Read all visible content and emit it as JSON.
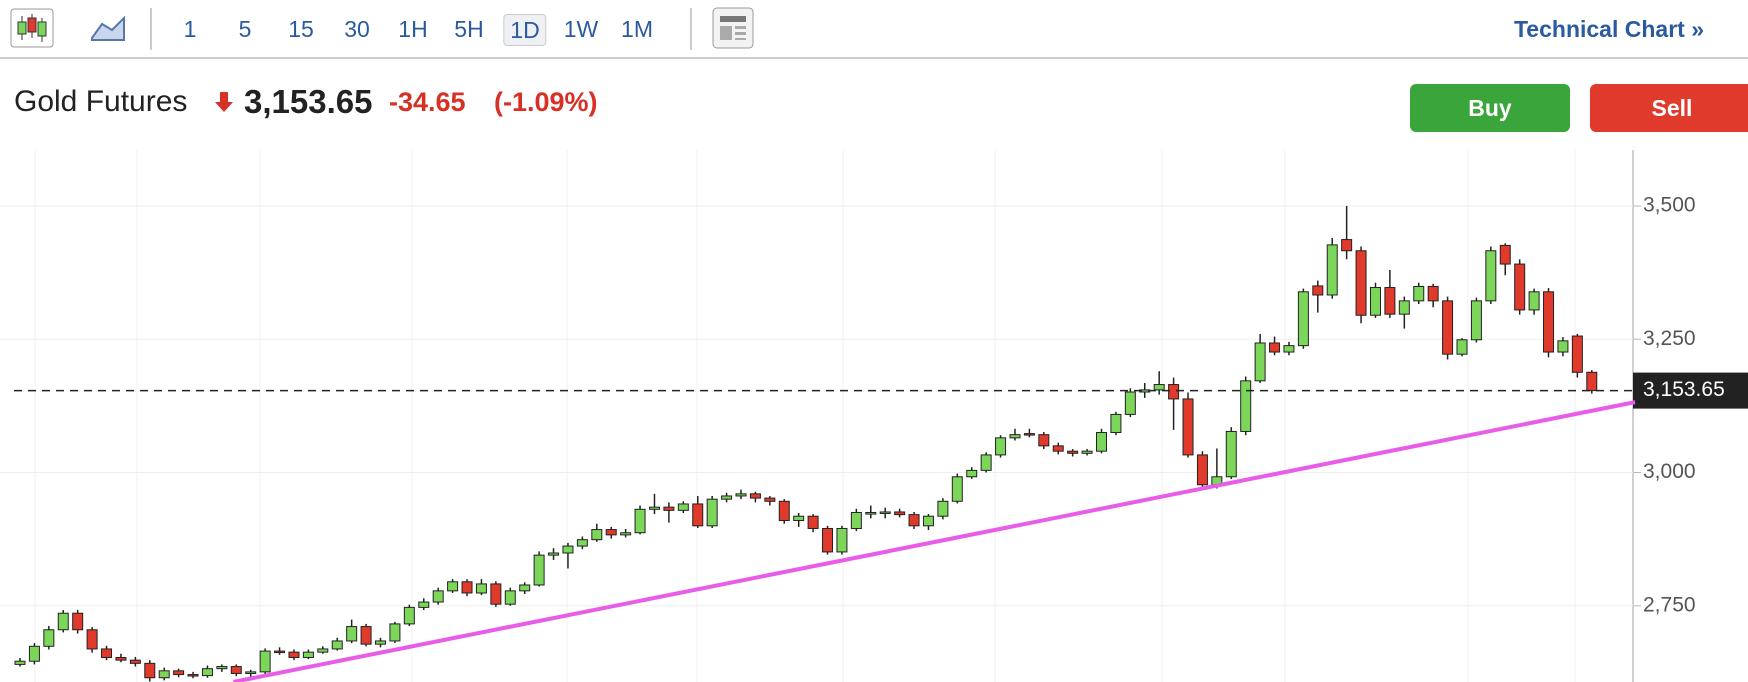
{
  "toolbar": {
    "intervals": [
      "1",
      "5",
      "15",
      "30",
      "1H",
      "5H",
      "1D",
      "1W",
      "1M"
    ],
    "selected": "1D",
    "link": "Technical Chart »"
  },
  "header": {
    "name": "Gold Futures",
    "price": "3,153.65",
    "change": "-34.65",
    "percent": "(-1.09%)",
    "buy": "Buy",
    "sell": "Sell"
  },
  "chart_data": {
    "type": "candlestick",
    "up_color": "#7cd65a",
    "down_color": "#df3a2b",
    "ylim": [
      2607,
      3605
    ],
    "yticks": [
      {
        "value": 2750,
        "label": "2,750"
      },
      {
        "value": 3000,
        "label": "3,000"
      },
      {
        "value": 3250,
        "label": "3,250"
      },
      {
        "value": 3500,
        "label": "3,500"
      }
    ],
    "grid": true,
    "last_price": {
      "value": 3153.65,
      "label": "3,153.65"
    },
    "trendline": {
      "from": [
        14.8,
        2607
      ],
      "to": [
        112,
        3132
      ],
      "color": "#e85ce8"
    },
    "candles": [
      [
        2640,
        2652,
        2636,
        2646
      ],
      [
        2646,
        2680,
        2640,
        2674
      ],
      [
        2674,
        2712,
        2668,
        2705
      ],
      [
        2705,
        2742,
        2700,
        2736
      ],
      [
        2736,
        2742,
        2698,
        2705
      ],
      [
        2705,
        2710,
        2662,
        2669
      ],
      [
        2669,
        2675,
        2648,
        2653
      ],
      [
        2653,
        2660,
        2644,
        2648
      ],
      [
        2648,
        2654,
        2636,
        2642
      ],
      [
        2642,
        2648,
        2608,
        2615
      ],
      [
        2615,
        2634,
        2610,
        2628
      ],
      [
        2628,
        2632,
        2616,
        2621
      ],
      [
        2621,
        2626,
        2614,
        2619
      ],
      [
        2619,
        2638,
        2615,
        2632
      ],
      [
        2632,
        2640,
        2626,
        2636
      ],
      [
        2636,
        2640,
        2618,
        2623
      ],
      [
        2623,
        2630,
        2616,
        2626
      ],
      [
        2626,
        2670,
        2622,
        2665
      ],
      [
        2665,
        2672,
        2658,
        2663
      ],
      [
        2663,
        2668,
        2648,
        2653
      ],
      [
        2653,
        2668,
        2650,
        2663
      ],
      [
        2663,
        2674,
        2660,
        2669
      ],
      [
        2669,
        2690,
        2666,
        2684
      ],
      [
        2684,
        2724,
        2680,
        2711
      ],
      [
        2711,
        2716,
        2674,
        2678
      ],
      [
        2678,
        2690,
        2672,
        2684
      ],
      [
        2684,
        2720,
        2680,
        2716
      ],
      [
        2716,
        2752,
        2712,
        2747
      ],
      [
        2747,
        2764,
        2742,
        2757
      ],
      [
        2757,
        2784,
        2752,
        2778
      ],
      [
        2778,
        2800,
        2774,
        2795
      ],
      [
        2795,
        2800,
        2768,
        2774
      ],
      [
        2774,
        2800,
        2770,
        2791
      ],
      [
        2791,
        2796,
        2748,
        2753
      ],
      [
        2753,
        2784,
        2750,
        2778
      ],
      [
        2778,
        2794,
        2772,
        2789
      ],
      [
        2789,
        2852,
        2786,
        2845
      ],
      [
        2845,
        2858,
        2836,
        2849
      ],
      [
        2849,
        2868,
        2820,
        2862
      ],
      [
        2862,
        2880,
        2856,
        2874
      ],
      [
        2874,
        2904,
        2870,
        2893
      ],
      [
        2893,
        2898,
        2876,
        2883
      ],
      [
        2883,
        2894,
        2878,
        2887
      ],
      [
        2887,
        2938,
        2884,
        2931
      ],
      [
        2931,
        2960,
        2922,
        2935
      ],
      [
        2935,
        2944,
        2906,
        2929
      ],
      [
        2929,
        2946,
        2924,
        2941
      ],
      [
        2941,
        2956,
        2896,
        2900
      ],
      [
        2900,
        2956,
        2896,
        2950
      ],
      [
        2950,
        2962,
        2944,
        2956
      ],
      [
        2956,
        2968,
        2950,
        2960
      ],
      [
        2960,
        2964,
        2944,
        2952
      ],
      [
        2952,
        2956,
        2938,
        2946
      ],
      [
        2946,
        2950,
        2904,
        2910
      ],
      [
        2910,
        2924,
        2898,
        2918
      ],
      [
        2918,
        2922,
        2888,
        2895
      ],
      [
        2895,
        2900,
        2846,
        2851
      ],
      [
        2851,
        2900,
        2846,
        2895
      ],
      [
        2895,
        2932,
        2890,
        2925
      ],
      [
        2922,
        2938,
        2914,
        2925
      ],
      [
        2924,
        2934,
        2914,
        2926
      ],
      [
        2926,
        2932,
        2916,
        2921
      ],
      [
        2921,
        2926,
        2894,
        2900
      ],
      [
        2900,
        2922,
        2892,
        2918
      ],
      [
        2918,
        2952,
        2912,
        2946
      ],
      [
        2946,
        2998,
        2942,
        2992
      ],
      [
        2992,
        3010,
        2988,
        3004
      ],
      [
        3004,
        3038,
        3000,
        3033
      ],
      [
        3033,
        3070,
        3028,
        3065
      ],
      [
        3065,
        3082,
        3060,
        3071
      ],
      [
        3073,
        3082,
        3066,
        3071
      ],
      [
        3071,
        3076,
        3044,
        3050
      ],
      [
        3050,
        3056,
        3034,
        3040
      ],
      [
        3040,
        3044,
        3030,
        3036
      ],
      [
        3036,
        3044,
        3032,
        3040
      ],
      [
        3040,
        3082,
        3036,
        3075
      ],
      [
        3075,
        3114,
        3070,
        3109
      ],
      [
        3109,
        3158,
        3104,
        3151
      ],
      [
        3151,
        3168,
        3140,
        3155
      ],
      [
        3155,
        3190,
        3146,
        3165
      ],
      [
        3165,
        3178,
        3080,
        3138
      ],
      [
        3138,
        3150,
        3028,
        3033
      ],
      [
        3033,
        3040,
        2970,
        2977
      ],
      [
        2977,
        3045,
        2970,
        2992
      ],
      [
        2992,
        3085,
        2988,
        3077
      ],
      [
        3077,
        3180,
        3070,
        3172
      ],
      [
        3172,
        3260,
        3168,
        3243
      ],
      [
        3243,
        3255,
        3220,
        3226
      ],
      [
        3226,
        3245,
        3220,
        3238
      ],
      [
        3238,
        3345,
        3232,
        3339
      ],
      [
        3350,
        3360,
        3300,
        3333
      ],
      [
        3333,
        3440,
        3326,
        3427
      ],
      [
        3437,
        3500,
        3400,
        3416
      ],
      [
        3416,
        3424,
        3280,
        3295
      ],
      [
        3295,
        3356,
        3290,
        3347
      ],
      [
        3347,
        3380,
        3290,
        3297
      ],
      [
        3297,
        3330,
        3270,
        3322
      ],
      [
        3322,
        3356,
        3316,
        3349
      ],
      [
        3349,
        3354,
        3310,
        3322
      ],
      [
        3322,
        3330,
        3212,
        3222
      ],
      [
        3222,
        3252,
        3218,
        3249
      ],
      [
        3249,
        3328,
        3244,
        3322
      ],
      [
        3322,
        3424,
        3316,
        3416
      ],
      [
        3426,
        3430,
        3370,
        3391
      ],
      [
        3391,
        3400,
        3296,
        3305
      ],
      [
        3305,
        3345,
        3296,
        3339
      ],
      [
        3339,
        3346,
        3216,
        3226
      ],
      [
        3226,
        3254,
        3218,
        3247
      ],
      [
        3256,
        3260,
        3178,
        3188
      ],
      [
        3188,
        3192,
        3148,
        3153.65
      ]
    ]
  }
}
